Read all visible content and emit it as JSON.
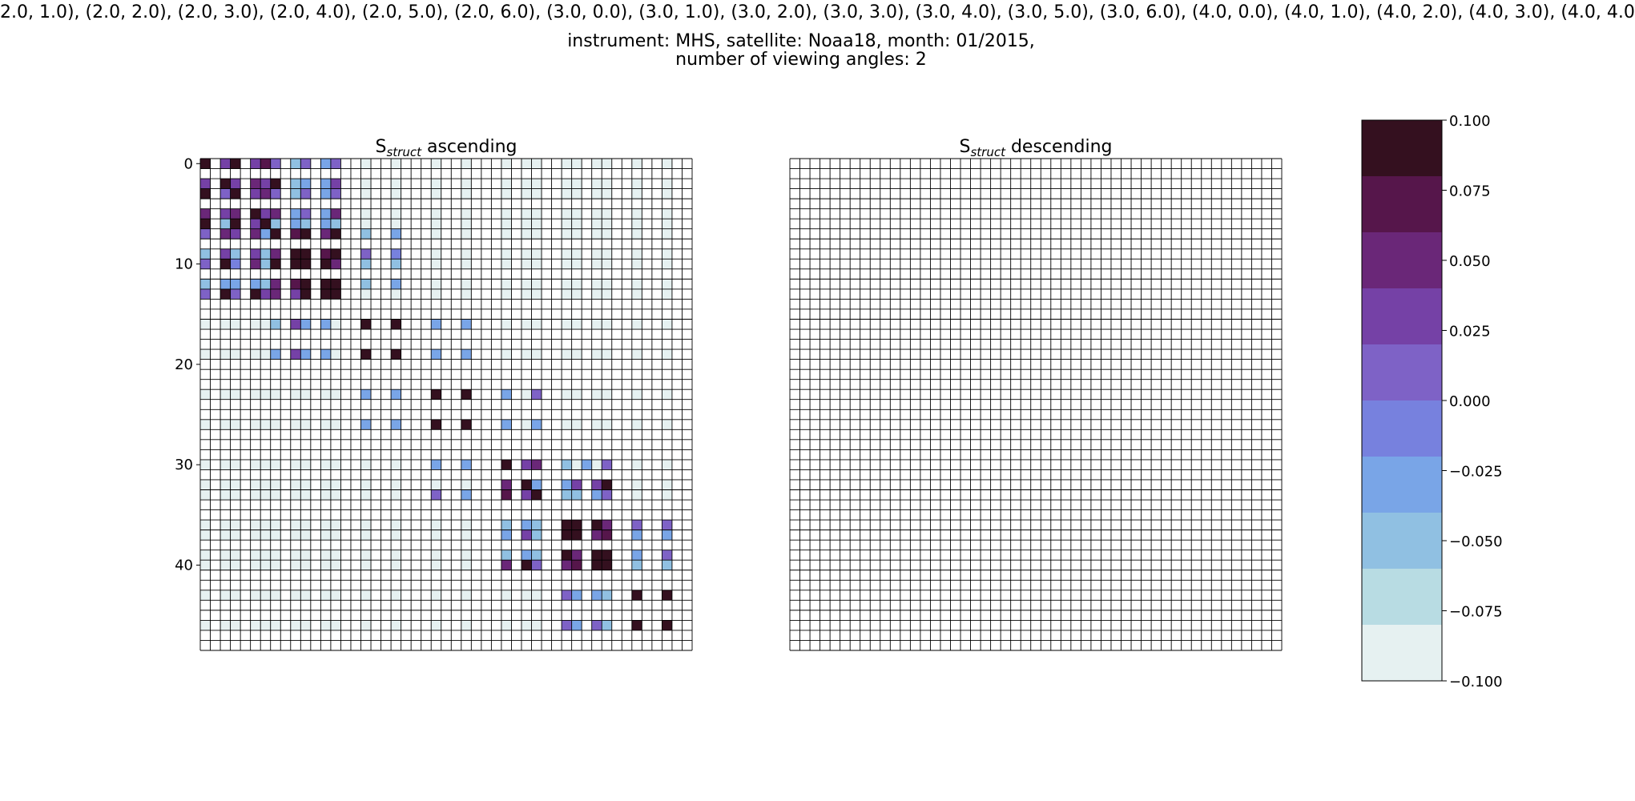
{
  "suptitle": {
    "line1": "2.0, 1.0), (2.0, 2.0), (2.0, 3.0), (2.0, 4.0), (2.0, 5.0), (2.0, 6.0), (3.0, 0.0), (3.0, 1.0), (3.0, 2.0), (3.0, 3.0), (3.0, 4.0), (3.0, 5.0), (3.0, 6.0), (4.0, 0.0), (4.0, 1.0), (4.0, 2.0), (4.0, 3.0), (4.0, 4.0",
    "line2": "instrument: MHS, satellite: Noaa18, month: 01/2015,",
    "line3": "number of viewing angles: 2"
  },
  "chart_data": [
    {
      "type": "heatmap",
      "title_main": "S",
      "title_sub": "struct",
      "title_rest": " ascending",
      "grid": true,
      "size": [
        49,
        49
      ],
      "yticks": [
        0,
        10,
        20,
        30,
        40
      ],
      "clim": [
        -0.1,
        0.1
      ],
      "empty_value": "NaN",
      "cells": [
        [
          0,
          0,
          0.1
        ],
        [
          0,
          2,
          0.02
        ],
        [
          0,
          3,
          0.1
        ],
        [
          0,
          5,
          0.03
        ],
        [
          0,
          6,
          0.07
        ],
        [
          0,
          7,
          0.01
        ],
        [
          0,
          9,
          -0.06
        ],
        [
          0,
          10,
          0.0
        ],
        [
          0,
          12,
          -0.04
        ],
        [
          0,
          13,
          0.0
        ],
        [
          2,
          0,
          0.03
        ],
        [
          2,
          2,
          0.1
        ],
        [
          2,
          3,
          0.02
        ],
        [
          2,
          5,
          0.06
        ],
        [
          2,
          6,
          0.03
        ],
        [
          2,
          7,
          0.08
        ],
        [
          2,
          9,
          -0.05
        ],
        [
          2,
          10,
          -0.02
        ],
        [
          2,
          12,
          -0.04
        ],
        [
          2,
          13,
          0.02
        ],
        [
          3,
          0,
          0.1
        ],
        [
          3,
          2,
          0.01
        ],
        [
          3,
          3,
          0.1
        ],
        [
          3,
          5,
          0.02
        ],
        [
          3,
          6,
          0.06
        ],
        [
          3,
          7,
          0.01
        ],
        [
          3,
          9,
          -0.05
        ],
        [
          3,
          10,
          0.0
        ],
        [
          3,
          12,
          -0.04
        ],
        [
          3,
          13,
          0.0
        ],
        [
          5,
          0,
          0.06
        ],
        [
          5,
          2,
          0.03
        ],
        [
          5,
          3,
          0.06
        ],
        [
          5,
          5,
          0.1
        ],
        [
          5,
          6,
          0.03
        ],
        [
          5,
          7,
          0.04
        ],
        [
          5,
          9,
          -0.03
        ],
        [
          5,
          10,
          0.01
        ],
        [
          5,
          12,
          -0.03
        ],
        [
          5,
          13,
          0.06
        ],
        [
          6,
          0,
          0.08
        ],
        [
          6,
          2,
          -0.05
        ],
        [
          6,
          3,
          0.08
        ],
        [
          6,
          5,
          0.02
        ],
        [
          6,
          6,
          0.1
        ],
        [
          6,
          7,
          -0.05
        ],
        [
          6,
          9,
          -0.04
        ],
        [
          6,
          10,
          -0.05
        ],
        [
          6,
          12,
          -0.04
        ],
        [
          6,
          13,
          -0.05
        ],
        [
          7,
          0,
          0.01
        ],
        [
          7,
          2,
          0.06
        ],
        [
          7,
          3,
          0.02
        ],
        [
          7,
          5,
          0.06
        ],
        [
          7,
          6,
          -0.04
        ],
        [
          7,
          7,
          0.1
        ],
        [
          7,
          9,
          0.07
        ],
        [
          7,
          10,
          0.09
        ],
        [
          7,
          12,
          0.06
        ],
        [
          7,
          13,
          0.08
        ],
        [
          7,
          16,
          -0.06
        ],
        [
          7,
          19,
          -0.04
        ],
        [
          9,
          0,
          -0.06
        ],
        [
          9,
          2,
          0.03
        ],
        [
          9,
          3,
          -0.05
        ],
        [
          9,
          5,
          0.02
        ],
        [
          9,
          6,
          -0.05
        ],
        [
          9,
          7,
          0.06
        ],
        [
          9,
          9,
          0.1
        ],
        [
          9,
          10,
          0.1
        ],
        [
          9,
          12,
          0.07
        ],
        [
          9,
          13,
          0.08
        ],
        [
          9,
          16,
          0.0
        ],
        [
          9,
          19,
          -0.01
        ],
        [
          10,
          0,
          0.0
        ],
        [
          10,
          2,
          0.08
        ],
        [
          10,
          3,
          -0.01
        ],
        [
          10,
          5,
          0.06
        ],
        [
          10,
          6,
          -0.05
        ],
        [
          10,
          7,
          0.08
        ],
        [
          10,
          9,
          0.08
        ],
        [
          10,
          10,
          0.1
        ],
        [
          10,
          12,
          0.08
        ],
        [
          10,
          13,
          0.06
        ],
        [
          10,
          16,
          -0.06
        ],
        [
          10,
          19,
          -0.06
        ],
        [
          12,
          0,
          -0.05
        ],
        [
          12,
          2,
          -0.02
        ],
        [
          12,
          3,
          -0.04
        ],
        [
          12,
          5,
          -0.03
        ],
        [
          12,
          6,
          -0.05
        ],
        [
          12,
          7,
          0.06
        ],
        [
          12,
          9,
          0.07
        ],
        [
          12,
          10,
          0.09
        ],
        [
          12,
          12,
          0.1
        ],
        [
          12,
          13,
          0.09
        ],
        [
          12,
          16,
          -0.05
        ],
        [
          12,
          19,
          -0.04
        ],
        [
          13,
          0,
          0.0
        ],
        [
          13,
          2,
          0.08
        ],
        [
          13,
          3,
          0.01
        ],
        [
          13,
          5,
          0.08
        ],
        [
          13,
          6,
          0.02
        ],
        [
          13,
          7,
          0.06
        ],
        [
          13,
          9,
          0.03
        ],
        [
          13,
          10,
          0.08
        ],
        [
          13,
          12,
          0.08
        ],
        [
          13,
          13,
          0.1
        ],
        [
          16,
          7,
          -0.05
        ],
        [
          16,
          9,
          0.02
        ],
        [
          16,
          10,
          -0.04
        ],
        [
          16,
          12,
          -0.04
        ],
        [
          16,
          16,
          0.1
        ],
        [
          16,
          19,
          0.08
        ],
        [
          16,
          23,
          -0.02
        ],
        [
          16,
          26,
          -0.02
        ],
        [
          19,
          7,
          -0.04
        ],
        [
          19,
          9,
          0.02
        ],
        [
          19,
          10,
          -0.04
        ],
        [
          19,
          12,
          -0.02
        ],
        [
          19,
          16,
          0.08
        ],
        [
          19,
          19,
          0.1
        ],
        [
          19,
          23,
          -0.03
        ],
        [
          19,
          26,
          -0.03
        ],
        [
          23,
          16,
          -0.03
        ],
        [
          23,
          19,
          -0.03
        ],
        [
          23,
          23,
          0.1
        ],
        [
          23,
          26,
          0.08
        ],
        [
          23,
          30,
          -0.02
        ],
        [
          23,
          33,
          0.0
        ],
        [
          26,
          16,
          -0.02
        ],
        [
          26,
          19,
          -0.02
        ],
        [
          26,
          23,
          0.08
        ],
        [
          26,
          26,
          0.1
        ],
        [
          26,
          30,
          -0.03
        ],
        [
          26,
          33,
          -0.03
        ],
        [
          30,
          23,
          -0.02
        ],
        [
          30,
          26,
          -0.04
        ],
        [
          30,
          30,
          0.1
        ],
        [
          30,
          32,
          0.03
        ],
        [
          30,
          33,
          0.06
        ],
        [
          30,
          36,
          -0.05
        ],
        [
          30,
          38,
          -0.04
        ],
        [
          30,
          40,
          0.01
        ],
        [
          32,
          30,
          0.04
        ],
        [
          32,
          32,
          0.1
        ],
        [
          32,
          33,
          -0.04
        ],
        [
          32,
          36,
          -0.03
        ],
        [
          32,
          37,
          0.03
        ],
        [
          32,
          39,
          0.03
        ],
        [
          32,
          40,
          0.08
        ],
        [
          33,
          23,
          -0.0
        ],
        [
          33,
          26,
          -0.03
        ],
        [
          33,
          30,
          0.07
        ],
        [
          33,
          32,
          0.03
        ],
        [
          33,
          33,
          0.1
        ],
        [
          33,
          36,
          -0.05
        ],
        [
          33,
          37,
          -0.05
        ],
        [
          33,
          39,
          -0.04
        ],
        [
          33,
          40,
          0.01
        ],
        [
          36,
          30,
          -0.05
        ],
        [
          36,
          32,
          -0.04
        ],
        [
          36,
          33,
          -0.05
        ],
        [
          36,
          36,
          0.1
        ],
        [
          36,
          37,
          0.1
        ],
        [
          36,
          39,
          0.09
        ],
        [
          36,
          40,
          0.05
        ],
        [
          36,
          43,
          0.0
        ],
        [
          36,
          46,
          0.0
        ],
        [
          37,
          30,
          -0.02
        ],
        [
          37,
          32,
          0.03
        ],
        [
          37,
          33,
          -0.05
        ],
        [
          37,
          36,
          0.1
        ],
        [
          37,
          37,
          0.1
        ],
        [
          37,
          39,
          0.06
        ],
        [
          37,
          40,
          0.07
        ],
        [
          37,
          43,
          -0.04
        ],
        [
          37,
          46,
          -0.04
        ],
        [
          39,
          30,
          -0.05
        ],
        [
          39,
          32,
          -0.03
        ],
        [
          39,
          33,
          -0.05
        ],
        [
          39,
          36,
          0.09
        ],
        [
          39,
          37,
          0.06
        ],
        [
          39,
          39,
          0.1
        ],
        [
          39,
          40,
          0.1
        ],
        [
          39,
          43,
          -0.02
        ],
        [
          39,
          46,
          0.0
        ],
        [
          40,
          30,
          0.04
        ],
        [
          40,
          32,
          0.09
        ],
        [
          40,
          33,
          -0.0
        ],
        [
          40,
          36,
          0.05
        ],
        [
          40,
          37,
          0.07
        ],
        [
          40,
          39,
          0.1
        ],
        [
          40,
          40,
          0.1
        ],
        [
          40,
          43,
          -0.05
        ],
        [
          40,
          46,
          -0.06
        ],
        [
          43,
          36,
          0.0
        ],
        [
          43,
          37,
          -0.04
        ],
        [
          43,
          39,
          -0.02
        ],
        [
          43,
          40,
          -0.05
        ],
        [
          43,
          43,
          0.1
        ],
        [
          43,
          46,
          0.08
        ],
        [
          46,
          36,
          0.0
        ],
        [
          46,
          37,
          -0.04
        ],
        [
          46,
          39,
          0.0
        ],
        [
          46,
          40,
          -0.06
        ],
        [
          46,
          43,
          0.08
        ],
        [
          46,
          46,
          0.1
        ]
      ],
      "background_value": -0.1,
      "background_active_rows": [
        0,
        2,
        3,
        5,
        6,
        7,
        9,
        10,
        12,
        13,
        16,
        19,
        23,
        26,
        30,
        32,
        33,
        36,
        37,
        39,
        40,
        43,
        46
      ],
      "background_active_cols": [
        0,
        2,
        3,
        5,
        6,
        7,
        9,
        10,
        12,
        13,
        16,
        19,
        23,
        26,
        30,
        32,
        33,
        36,
        37,
        39,
        40,
        43,
        46
      ]
    },
    {
      "type": "heatmap",
      "title_main": "S",
      "title_sub": "struct",
      "title_rest": " descending",
      "grid": true,
      "size": [
        49,
        49
      ],
      "cells": []
    },
    {
      "type": "colorbar",
      "ticks": [
        "0.100",
        "0.075",
        "0.050",
        "0.025",
        "0.000",
        "−0.025",
        "−0.050",
        "−0.075",
        "−0.100"
      ],
      "range": [
        -0.1,
        0.1
      ],
      "levels": [
        "#e6f1f1",
        "#b8dce3",
        "#90c0e2",
        "#79a5e7",
        "#7781de",
        "#7e62c6",
        "#7541a6",
        "#6a2778",
        "#56164b",
        "#34101f"
      ]
    }
  ]
}
